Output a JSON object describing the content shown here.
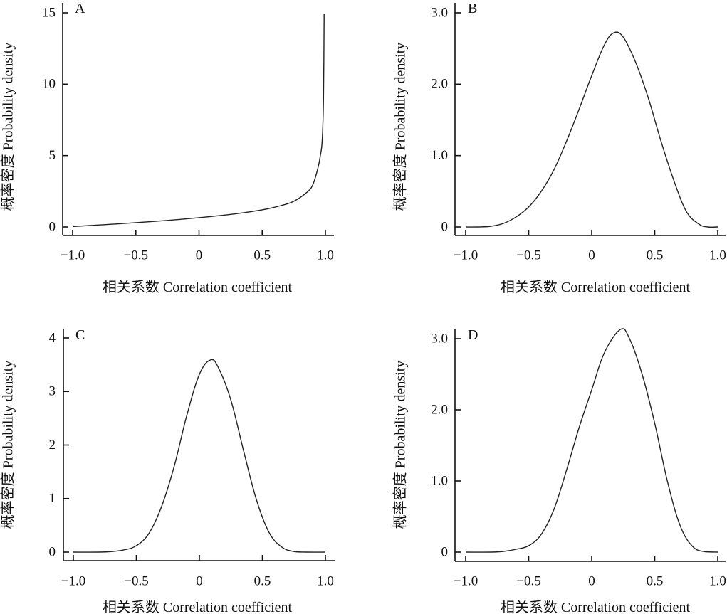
{
  "figure": {
    "line_color": "#222222",
    "axis_color": "#111111",
    "background": "#ffffff"
  },
  "chart_data": [
    {
      "panel": "A",
      "type": "line",
      "title": "A",
      "xlabel": "相关系数 Correlation coefficient",
      "ylabel": "概率密度 Probability density",
      "xlim": [
        -1.0,
        1.0
      ],
      "ylim": [
        0,
        15
      ],
      "xticks": [
        -1.0,
        -0.5,
        0,
        0.5,
        1.0
      ],
      "xtick_labels": [
        "−1.0",
        "−0.5",
        "0",
        "0.5",
        "1.0"
      ],
      "yticks": [
        0,
        5,
        10,
        15
      ],
      "ytick_labels": [
        "0",
        "5",
        "10",
        "15"
      ],
      "grid": false,
      "series": [
        {
          "name": "density",
          "x": [
            -1.0,
            -0.75,
            -0.5,
            -0.25,
            0,
            0.25,
            0.5,
            0.65,
            0.75,
            0.85,
            0.9,
            0.94,
            0.96,
            0.975,
            0.985,
            0.99
          ],
          "y": [
            0.03,
            0.16,
            0.3,
            0.46,
            0.65,
            0.88,
            1.2,
            1.5,
            1.8,
            2.4,
            2.95,
            4.1,
            5.0,
            6.1,
            9.1,
            14.9
          ]
        }
      ]
    },
    {
      "panel": "B",
      "type": "line",
      "title": "B",
      "xlabel": "相关系数 Correlation coefficient",
      "ylabel": "概率密度 Probability density",
      "xlim": [
        -1.0,
        1.0
      ],
      "ylim": [
        0,
        3.0
      ],
      "xticks": [
        -1.0,
        -0.5,
        0,
        0.5,
        1.0
      ],
      "xtick_labels": [
        "−1.0",
        "−0.5",
        "0",
        "0.5",
        "1.0"
      ],
      "yticks": [
        0,
        1.0,
        2.0,
        3.0
      ],
      "ytick_labels": [
        "0",
        "1.0",
        "2.0",
        "3.0"
      ],
      "grid": false,
      "series": [
        {
          "name": "density",
          "x": [
            -1.0,
            -0.9,
            -0.8,
            -0.7,
            -0.6,
            -0.5,
            -0.4,
            -0.3,
            -0.2,
            -0.1,
            0,
            0.1,
            0.175,
            0.25,
            0.35,
            0.45,
            0.55,
            0.65,
            0.75,
            0.85,
            0.92,
            1.0
          ],
          "y": [
            0,
            0,
            0.01,
            0.05,
            0.14,
            0.28,
            0.5,
            0.8,
            1.2,
            1.65,
            2.12,
            2.55,
            2.72,
            2.66,
            2.3,
            1.8,
            1.2,
            0.66,
            0.22,
            0.04,
            0,
            0
          ]
        }
      ]
    },
    {
      "panel": "C",
      "type": "line",
      "title": "C",
      "xlabel": "相关系数 Correlation coefficient",
      "ylabel": "概率密度 Probability density",
      "xlim": [
        -1.0,
        1.0
      ],
      "ylim": [
        0,
        4
      ],
      "xticks": [
        -1.0,
        -0.5,
        0,
        0.5,
        1.0
      ],
      "xtick_labels": [
        "−1.0",
        "−0.5",
        "0",
        "0.5",
        "1.0"
      ],
      "yticks": [
        0,
        1,
        2,
        3,
        4
      ],
      "ytick_labels": [
        "0",
        "1",
        "2",
        "3",
        "4"
      ],
      "grid": false,
      "series": [
        {
          "name": "density",
          "x": [
            -1.0,
            -0.8,
            -0.7,
            -0.6,
            -0.5,
            -0.4,
            -0.3,
            -0.2,
            -0.1,
            0,
            0.088,
            0.15,
            0.25,
            0.35,
            0.45,
            0.55,
            0.65,
            0.75,
            0.85,
            1.0
          ],
          "y": [
            0,
            0,
            0.01,
            0.04,
            0.12,
            0.35,
            0.85,
            1.6,
            2.55,
            3.32,
            3.59,
            3.45,
            2.84,
            1.9,
            1.0,
            0.38,
            0.1,
            0.01,
            0,
            0
          ]
        }
      ]
    },
    {
      "panel": "D",
      "type": "line",
      "title": "D",
      "xlabel": "相关系数 Correlation coefficient",
      "ylabel": "概率密度 Probability density",
      "xlim": [
        -1.0,
        1.0
      ],
      "ylim": [
        0,
        3.0
      ],
      "xticks": [
        -1.0,
        -0.5,
        0,
        0.5,
        1.0
      ],
      "xtick_labels": [
        "−1.0",
        "−0.5",
        "0",
        "0.5",
        "1.0"
      ],
      "yticks": [
        0,
        1.0,
        2.0,
        3.0
      ],
      "ytick_labels": [
        "0",
        "1.0",
        "2.0",
        "3.0"
      ],
      "grid": false,
      "series": [
        {
          "name": "density",
          "x": [
            -1.0,
            -0.8,
            -0.7,
            -0.6,
            -0.5,
            -0.4,
            -0.3,
            -0.2,
            -0.1,
            0,
            0.1,
            0.228,
            0.3,
            0.4,
            0.5,
            0.6,
            0.7,
            0.8,
            0.9,
            1.0
          ],
          "y": [
            0,
            0,
            0.01,
            0.04,
            0.09,
            0.25,
            0.6,
            1.15,
            1.75,
            2.28,
            2.8,
            3.13,
            3.0,
            2.5,
            1.81,
            1.0,
            0.38,
            0.08,
            0.005,
            0
          ]
        }
      ]
    }
  ]
}
